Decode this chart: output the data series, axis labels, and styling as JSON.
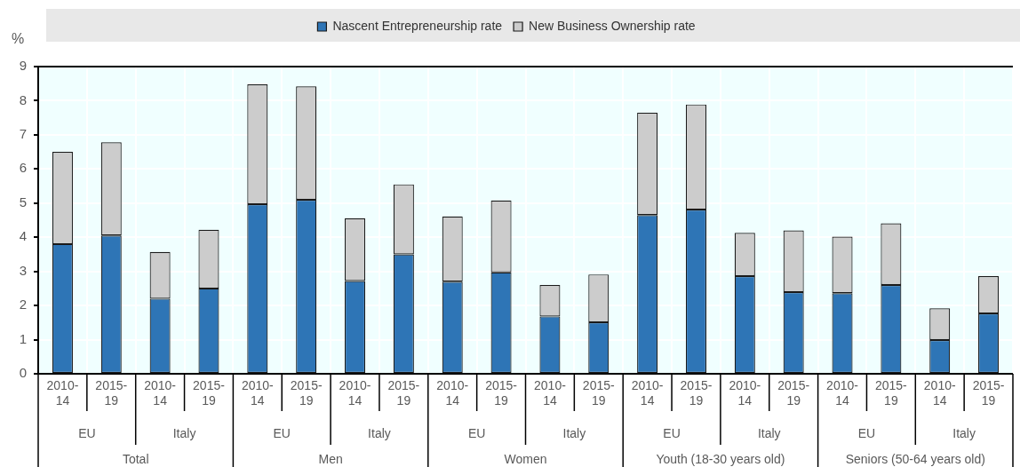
{
  "chart_data": {
    "type": "bar",
    "stacked": true,
    "ylabel": "%",
    "categories": [
      "2010-14",
      "2015-19",
      "2010-14",
      "2015-19",
      "2010-14",
      "2015-19",
      "2010-14",
      "2015-19",
      "2010-14",
      "2015-19",
      "2010-14",
      "2015-19",
      "2010-14",
      "2015-19",
      "2010-14",
      "2015-19",
      "2010-14",
      "2015-19",
      "2010-14",
      "2015-19"
    ],
    "series": [
      {
        "name": "Nascent Entrepreneurship rate",
        "color": "#2e75b6",
        "values": [
          3.8,
          4.05,
          2.2,
          2.5,
          4.97,
          5.1,
          2.72,
          3.5,
          2.7,
          2.97,
          1.68,
          1.51,
          4.65,
          4.81,
          2.86,
          2.39,
          2.36,
          2.6,
          0.99,
          1.77
        ]
      },
      {
        "name": "New Business Ownership rate",
        "color": "#cccccc",
        "values": [
          2.7,
          2.73,
          1.37,
          1.72,
          3.51,
          3.32,
          1.84,
          2.05,
          1.91,
          2.11,
          0.92,
          1.4,
          3.0,
          3.08,
          1.27,
          1.81,
          1.66,
          1.81,
          0.93,
          1.09
        ]
      }
    ],
    "annotations": [
      "EU",
      "Italy",
      "EU",
      "Italy",
      "EU",
      "Italy",
      "EU",
      "Italy",
      "EU",
      "Italy",
      "Total",
      "Men",
      "Women",
      "Youth (18-30 years old)",
      "Seniors (50-64 years old)"
    ],
    "ylim": [
      0,
      9
    ],
    "yticks": [
      0,
      1,
      2,
      3,
      4,
      5,
      6,
      7,
      8,
      9
    ],
    "grid": true,
    "legend": "top"
  }
}
